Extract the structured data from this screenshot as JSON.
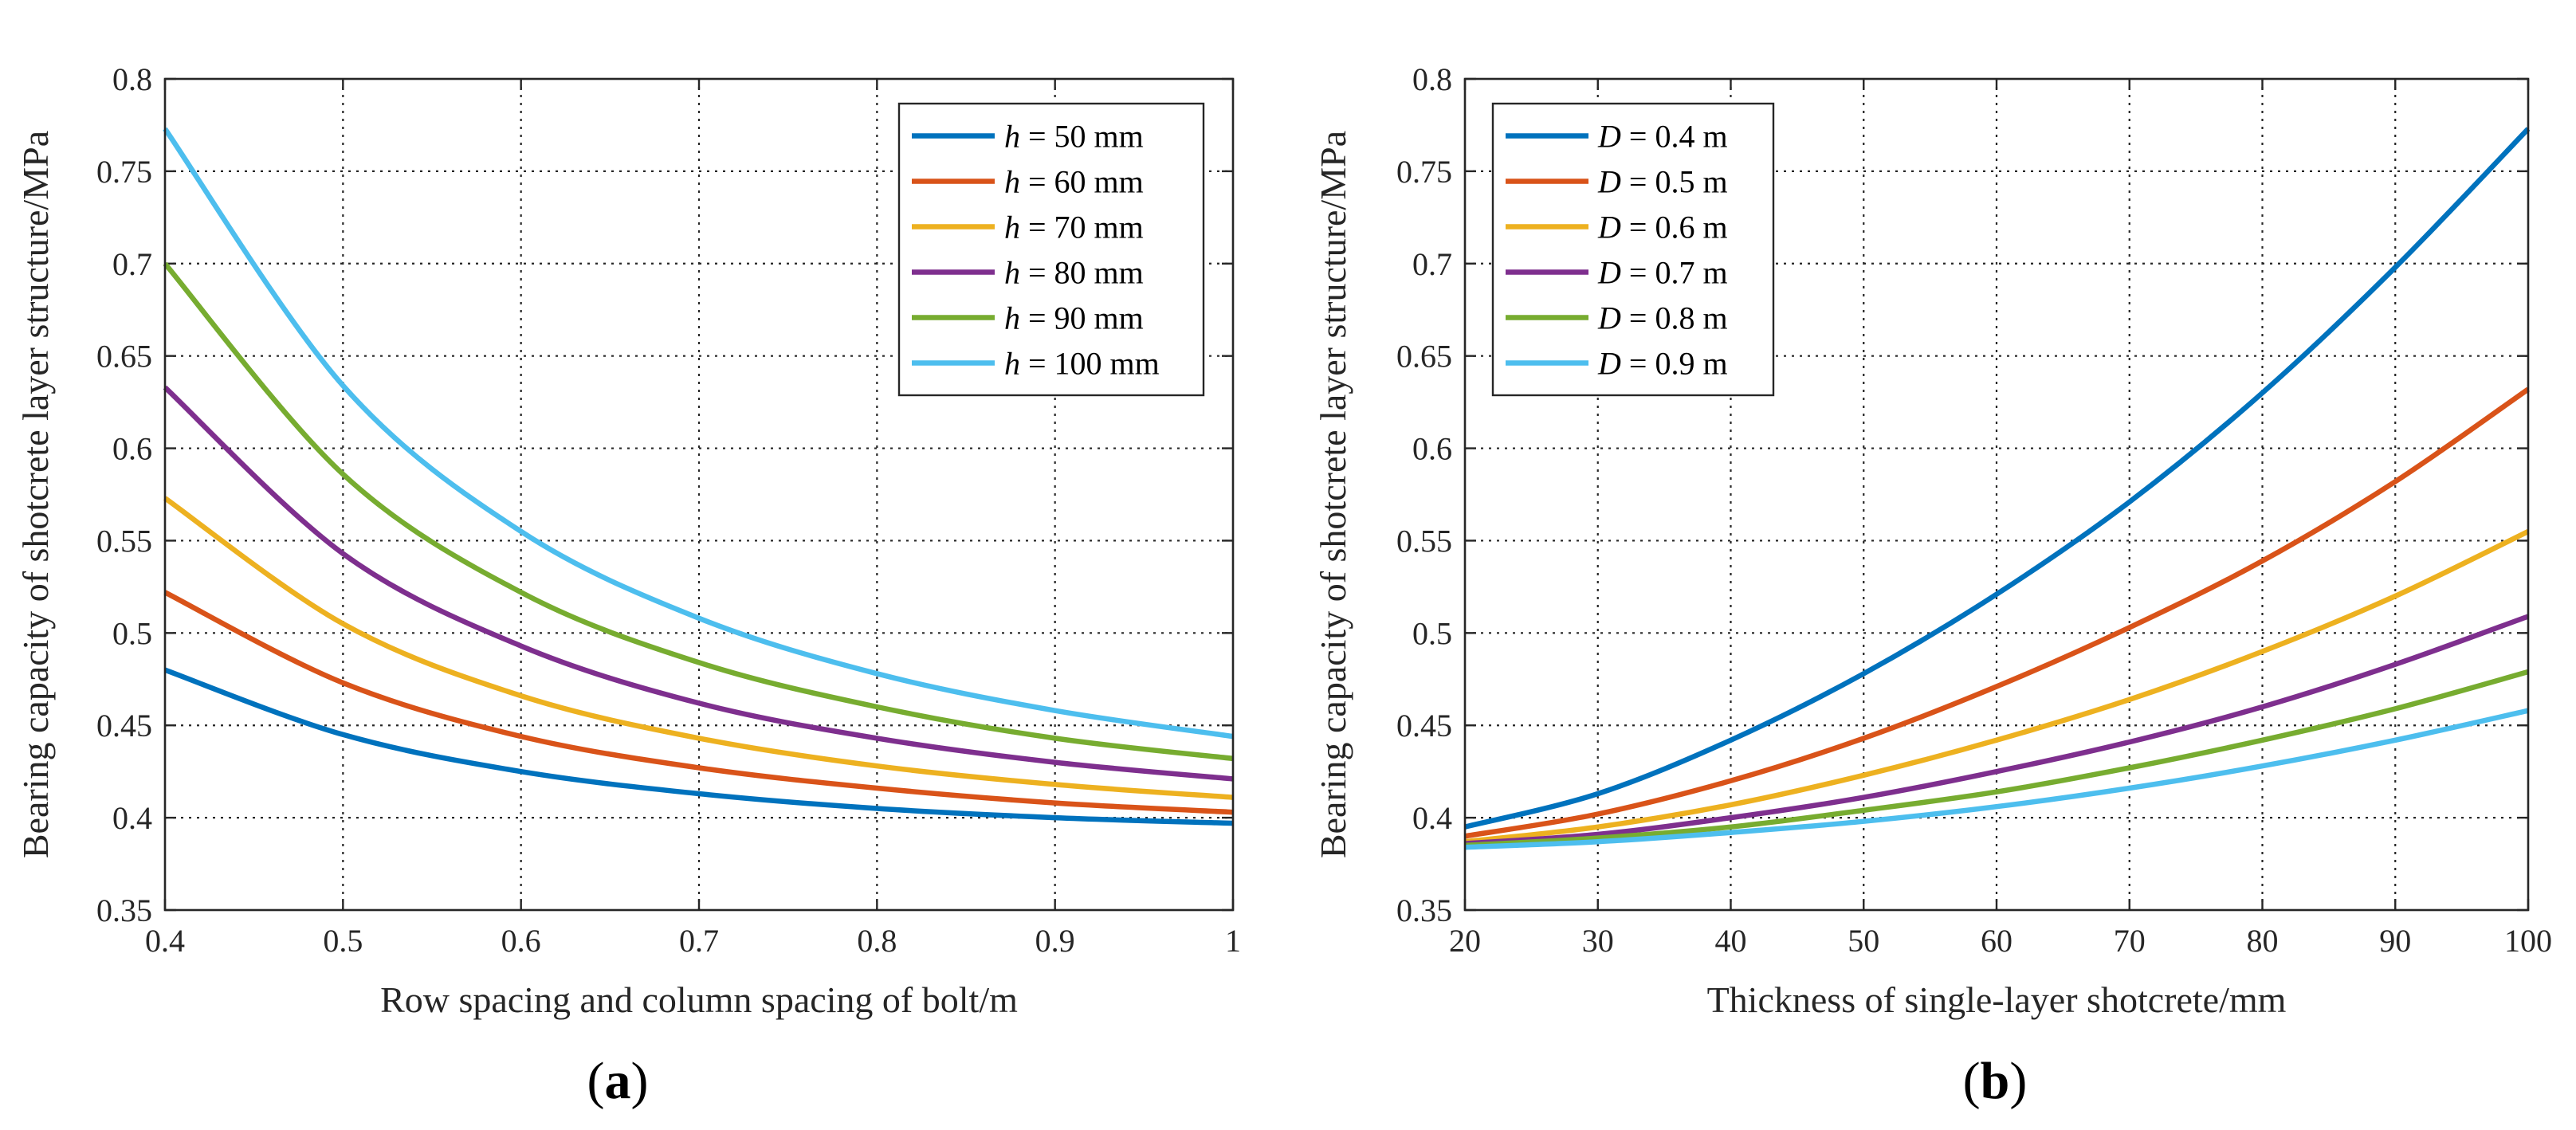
{
  "chart_data": [
    {
      "type": "line",
      "panel_label_open": "(",
      "panel_label_letter": "a",
      "panel_label_close": ")",
      "xlabel": "Row spacing and column spacing of bolt/m",
      "ylabel": "Bearing capacity of shotcrete layer structure/MPa",
      "xlim": [
        0.4,
        1.0
      ],
      "ylim": [
        0.35,
        0.8
      ],
      "xticks": [
        "0.4",
        "0.5",
        "0.6",
        "0.7",
        "0.8",
        "0.9",
        "1"
      ],
      "yticks": [
        "0.35",
        "0.4",
        "0.45",
        "0.5",
        "0.55",
        "0.6",
        "0.65",
        "0.7",
        "0.75",
        "0.8"
      ],
      "grid": true,
      "legend_position": "top-right",
      "x": [
        0.4,
        0.5,
        0.6,
        0.7,
        0.8,
        0.9,
        1.0
      ],
      "series": [
        {
          "var": "h",
          "rest": " = 50 mm",
          "color": "#0072BD",
          "values": [
            0.48,
            0.445,
            0.425,
            0.413,
            0.405,
            0.4,
            0.397
          ]
        },
        {
          "var": "h",
          "rest": " = 60 mm",
          "color": "#D95319",
          "values": [
            0.522,
            0.473,
            0.444,
            0.427,
            0.416,
            0.408,
            0.403
          ]
        },
        {
          "var": "h",
          "rest": " = 70 mm",
          "color": "#EDB120",
          "values": [
            0.573,
            0.505,
            0.466,
            0.443,
            0.428,
            0.418,
            0.411
          ]
        },
        {
          "var": "h",
          "rest": " = 80 mm",
          "color": "#7E2F8E",
          "values": [
            0.633,
            0.543,
            0.493,
            0.462,
            0.443,
            0.43,
            0.421
          ]
        },
        {
          "var": "h",
          "rest": " = 90 mm",
          "color": "#77AC30",
          "values": [
            0.7,
            0.586,
            0.522,
            0.484,
            0.46,
            0.443,
            0.432
          ]
        },
        {
          "var": "h",
          "rest": " = 100 mm",
          "color": "#4DBEEE",
          "values": [
            0.773,
            0.634,
            0.555,
            0.508,
            0.478,
            0.458,
            0.444
          ]
        }
      ]
    },
    {
      "type": "line",
      "panel_label_open": "(",
      "panel_label_letter": "b",
      "panel_label_close": ")",
      "xlabel": "Thickness of single-layer shotcrete/mm",
      "ylabel": "Bearing capacity of shotcrete layer structure/MPa",
      "xlim": [
        20,
        100
      ],
      "ylim": [
        0.35,
        0.8
      ],
      "xticks": [
        "20",
        "30",
        "40",
        "50",
        "60",
        "70",
        "80",
        "90",
        "100"
      ],
      "yticks": [
        "0.35",
        "0.4",
        "0.45",
        "0.5",
        "0.55",
        "0.6",
        "0.65",
        "0.7",
        "0.75",
        "0.8"
      ],
      "grid": true,
      "legend_position": "top-left",
      "x": [
        20,
        30,
        40,
        50,
        60,
        70,
        80,
        90,
        100
      ],
      "series": [
        {
          "var": "D",
          "rest": " = 0.4 m",
          "color": "#0072BD",
          "values": [
            0.395,
            0.413,
            0.442,
            0.478,
            0.521,
            0.571,
            0.63,
            0.698,
            0.773
          ]
        },
        {
          "var": "D",
          "rest": " = 0.5 m",
          "color": "#D95319",
          "values": [
            0.39,
            0.402,
            0.42,
            0.443,
            0.471,
            0.503,
            0.539,
            0.582,
            0.632
          ]
        },
        {
          "var": "D",
          "rest": " = 0.6 m",
          "color": "#EDB120",
          "values": [
            0.387,
            0.395,
            0.407,
            0.423,
            0.442,
            0.464,
            0.49,
            0.52,
            0.555
          ]
        },
        {
          "var": "D",
          "rest": " = 0.7 m",
          "color": "#7E2F8E",
          "values": [
            0.386,
            0.391,
            0.4,
            0.411,
            0.425,
            0.441,
            0.46,
            0.483,
            0.509
          ]
        },
        {
          "var": "D",
          "rest": " = 0.8 m",
          "color": "#77AC30",
          "values": [
            0.385,
            0.389,
            0.395,
            0.404,
            0.414,
            0.427,
            0.442,
            0.459,
            0.479
          ]
        },
        {
          "var": "D",
          "rest": " = 0.9 m",
          "color": "#4DBEEE",
          "values": [
            0.384,
            0.387,
            0.392,
            0.398,
            0.406,
            0.416,
            0.428,
            0.442,
            0.458
          ]
        }
      ]
    }
  ]
}
